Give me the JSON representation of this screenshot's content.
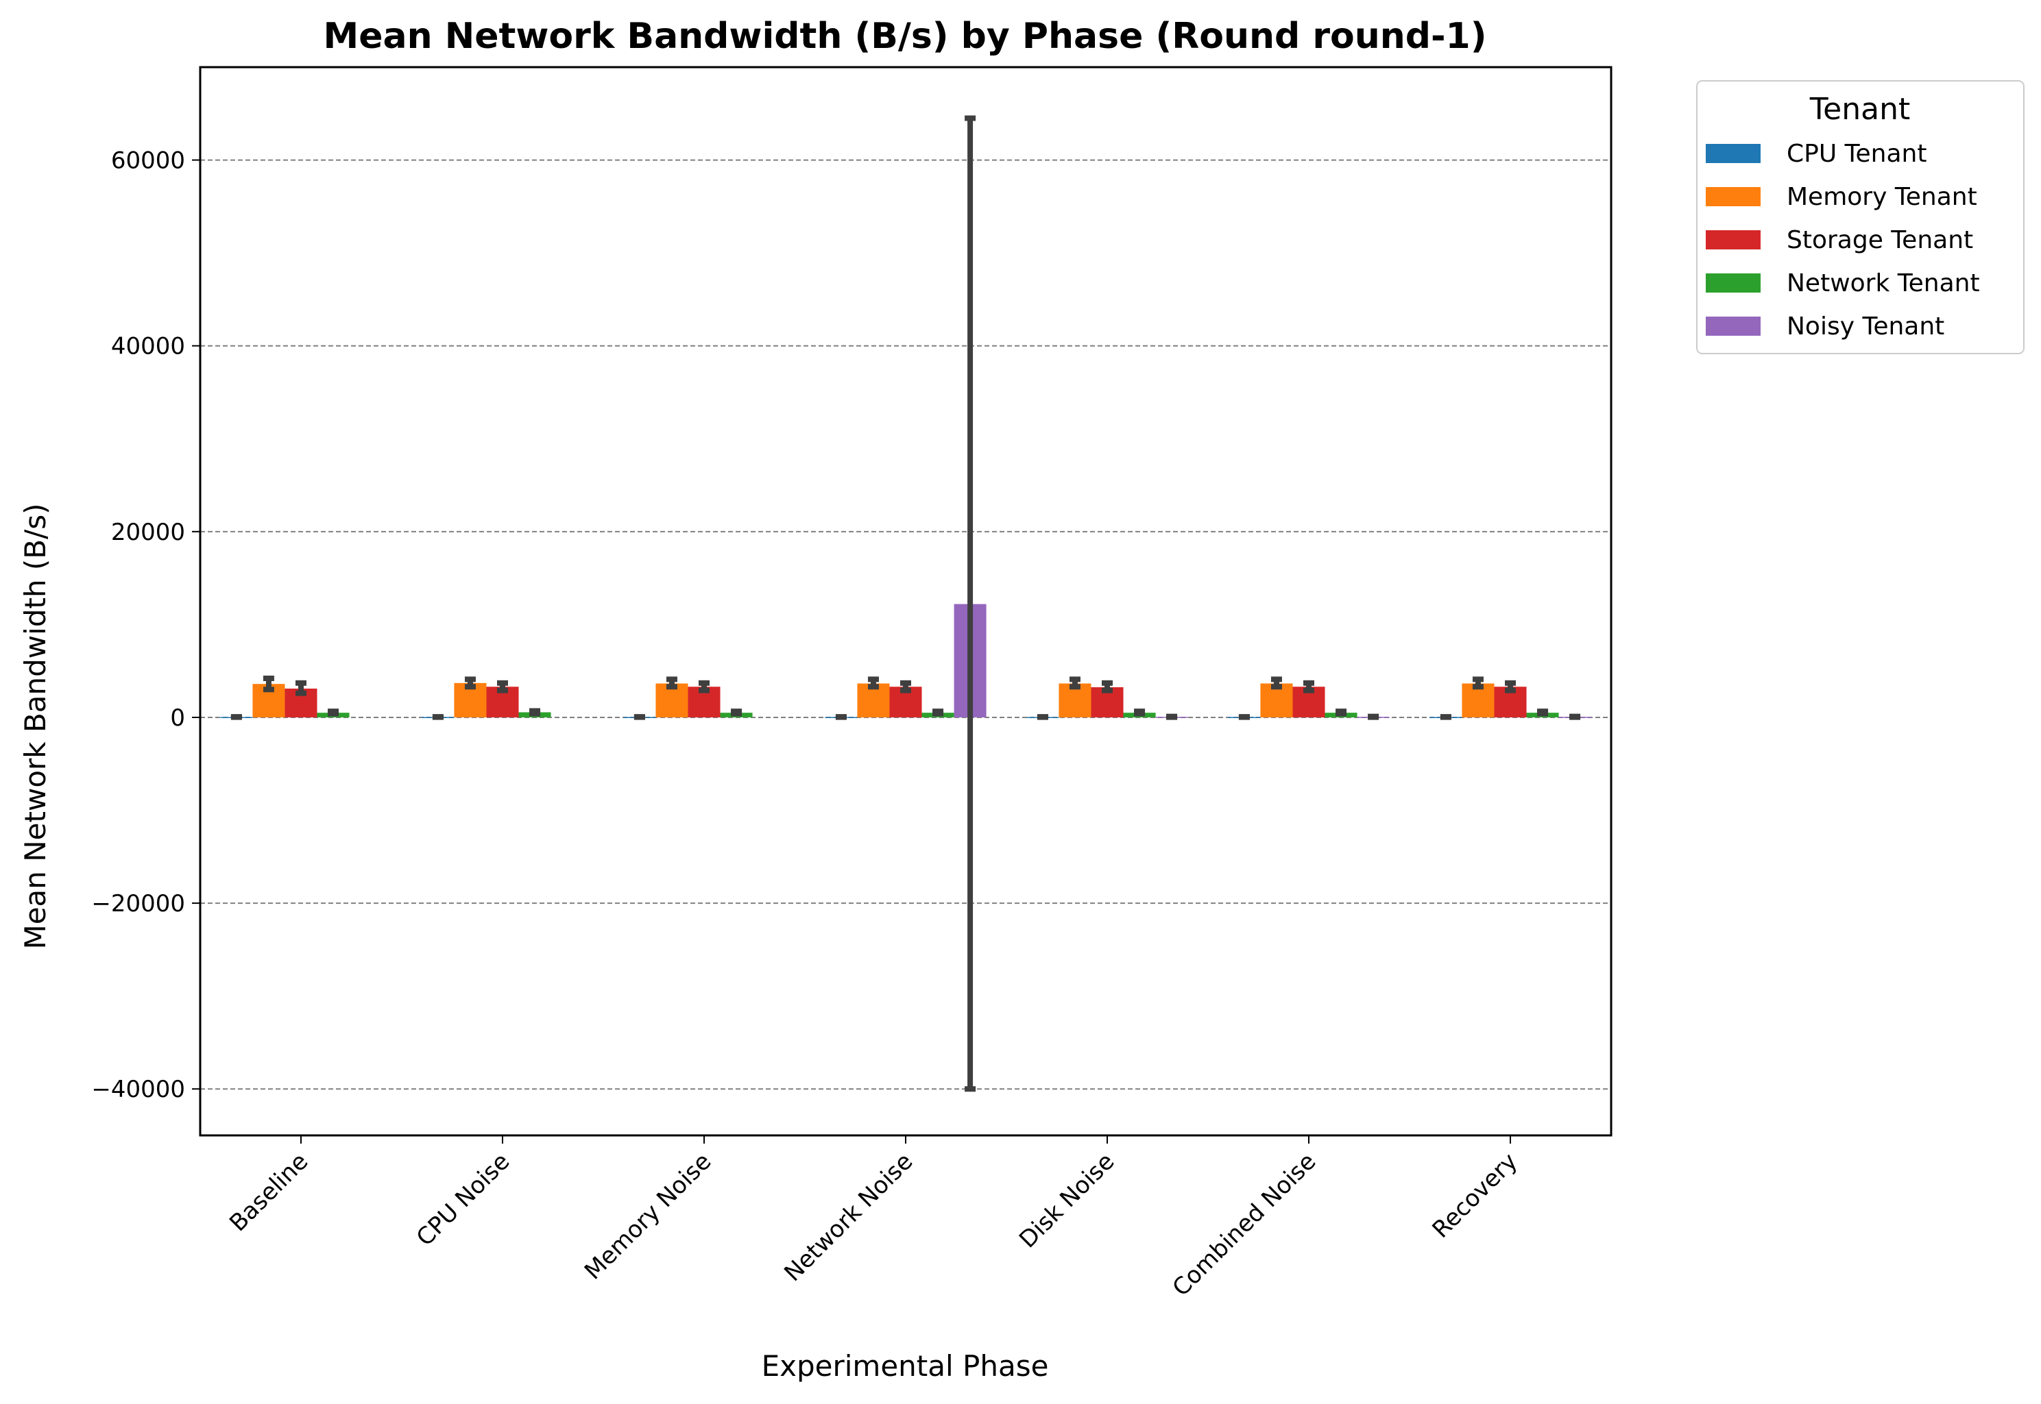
{
  "chart_data": {
    "type": "bar",
    "title": "Mean Network Bandwidth (B/s) by Phase (Round round-1)",
    "xlabel": "Experimental Phase",
    "ylabel": "Mean Network Bandwidth (B/s)",
    "ylim": [
      -45000,
      70000
    ],
    "yticks": [
      -40000,
      -20000,
      0,
      20000,
      40000,
      60000
    ],
    "ytick_labels": [
      "−40000",
      "−20000",
      "0",
      "20000",
      "40000",
      "60000"
    ],
    "grid": "horizontal dashed",
    "categories": [
      "Baseline",
      "CPU Noise",
      "Memory Noise",
      "Network Noise",
      "Disk Noise",
      "Combined Noise",
      "Recovery"
    ],
    "legend": {
      "title": "Tenant",
      "placement": "outside-top-right"
    },
    "series": [
      {
        "name": "CPU Tenant",
        "color": "#1f77b4",
        "values": [
          40,
          40,
          40,
          40,
          40,
          40,
          40
        ],
        "errors": [
          [
            20,
            60
          ],
          [
            20,
            60
          ],
          [
            20,
            60
          ],
          [
            20,
            60
          ],
          [
            20,
            60
          ],
          [
            20,
            60
          ],
          [
            20,
            60
          ]
        ]
      },
      {
        "name": "Memory Tenant",
        "color": "#ff7f0e",
        "values": [
          3600,
          3700,
          3650,
          3650,
          3650,
          3650,
          3650
        ],
        "errors": [
          [
            3000,
            4200
          ],
          [
            3300,
            4100
          ],
          [
            3300,
            4100
          ],
          [
            3300,
            4100
          ],
          [
            3300,
            4100
          ],
          [
            3300,
            4100
          ],
          [
            3300,
            4100
          ]
        ]
      },
      {
        "name": "Storage Tenant",
        "color": "#d62728",
        "values": [
          3100,
          3300,
          3300,
          3300,
          3250,
          3300,
          3300
        ],
        "errors": [
          [
            2600,
            3700
          ],
          [
            2900,
            3700
          ],
          [
            2900,
            3700
          ],
          [
            2900,
            3700
          ],
          [
            2900,
            3700
          ],
          [
            2900,
            3700
          ],
          [
            2900,
            3700
          ]
        ]
      },
      {
        "name": "Network Tenant",
        "color": "#2ca02c",
        "values": [
          500,
          550,
          500,
          500,
          500,
          500,
          500
        ],
        "errors": [
          [
            400,
            650
          ],
          [
            400,
            700
          ],
          [
            400,
            650
          ],
          [
            400,
            650
          ],
          [
            400,
            650
          ],
          [
            400,
            650
          ],
          [
            400,
            650
          ]
        ]
      },
      {
        "name": "Noisy Tenant",
        "color": "#9467bd",
        "values": [
          null,
          null,
          null,
          12200,
          60,
          60,
          60
        ],
        "errors": [
          null,
          null,
          null,
          [
            -40000,
            64500
          ],
          [
            20,
            100
          ],
          [
            20,
            100
          ],
          [
            20,
            100
          ]
        ]
      }
    ]
  }
}
